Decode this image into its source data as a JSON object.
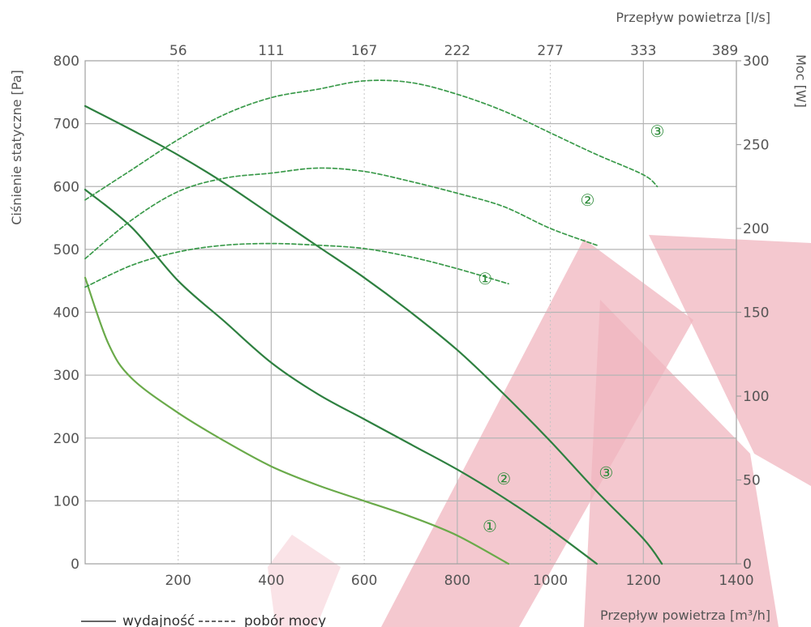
{
  "chart_data": {
    "type": "line",
    "x_axis_bottom": {
      "label": "Przepływ powietrza [m³/h]",
      "range": [
        0,
        1400
      ],
      "ticks": [
        200,
        400,
        600,
        800,
        1000,
        1200,
        1400
      ]
    },
    "x_axis_top": {
      "label": "Przepływ powietrza [l/s]",
      "ticks": [
        {
          "label": "56",
          "at_m3h": 200
        },
        {
          "label": "111",
          "at_m3h": 400
        },
        {
          "label": "167",
          "at_m3h": 600
        },
        {
          "label": "222",
          "at_m3h": 800
        },
        {
          "label": "277",
          "at_m3h": 1000
        },
        {
          "label": "333",
          "at_m3h": 1200
        },
        {
          "label": "389",
          "at_m3h": 1400
        }
      ]
    },
    "y_axis_left": {
      "label": "Ciśnienie statyczne [Pa]",
      "range": [
        0,
        800
      ],
      "ticks": [
        0,
        100,
        200,
        300,
        400,
        500,
        600,
        700,
        800
      ]
    },
    "y_axis_right": {
      "label": "Moc [W]",
      "range": [
        0,
        300
      ],
      "ticks": [
        0,
        50,
        100,
        150,
        200,
        250,
        300
      ]
    },
    "legend": {
      "placement": "bottom-left",
      "solid_label": "wydajność",
      "dashed_label": "pobór mocy"
    },
    "series": [
      {
        "kind": "pressure",
        "speed": "1",
        "color": "#6aaa4a",
        "points": [
          [
            0,
            455
          ],
          [
            50,
            350
          ],
          [
            100,
            295
          ],
          [
            200,
            240
          ],
          [
            300,
            195
          ],
          [
            400,
            155
          ],
          [
            500,
            125
          ],
          [
            600,
            100
          ],
          [
            700,
            75
          ],
          [
            800,
            45
          ],
          [
            910,
            0
          ]
        ]
      },
      {
        "kind": "pressure",
        "speed": "2",
        "color": "#2e8040",
        "points": [
          [
            0,
            595
          ],
          [
            100,
            535
          ],
          [
            200,
            450
          ],
          [
            300,
            385
          ],
          [
            400,
            320
          ],
          [
            500,
            270
          ],
          [
            600,
            230
          ],
          [
            700,
            190
          ],
          [
            800,
            150
          ],
          [
            900,
            105
          ],
          [
            1000,
            55
          ],
          [
            1100,
            0
          ]
        ]
      },
      {
        "kind": "pressure",
        "speed": "3",
        "color": "#2e8040",
        "points": [
          [
            0,
            728
          ],
          [
            100,
            690
          ],
          [
            200,
            650
          ],
          [
            300,
            605
          ],
          [
            400,
            555
          ],
          [
            500,
            505
          ],
          [
            600,
            455
          ],
          [
            700,
            400
          ],
          [
            800,
            340
          ],
          [
            900,
            270
          ],
          [
            1000,
            195
          ],
          [
            1100,
            115
          ],
          [
            1200,
            40
          ],
          [
            1240,
            0
          ]
        ]
      },
      {
        "kind": "power",
        "speed": "1",
        "color": "#3a9a4a",
        "points": [
          [
            0,
            165
          ],
          [
            100,
            178
          ],
          [
            200,
            186
          ],
          [
            300,
            190
          ],
          [
            400,
            191
          ],
          [
            500,
            190
          ],
          [
            600,
            188
          ],
          [
            700,
            183
          ],
          [
            800,
            176
          ],
          [
            910,
            167
          ]
        ]
      },
      {
        "kind": "power",
        "speed": "2",
        "color": "#3a9a4a",
        "points": [
          [
            0,
            182
          ],
          [
            100,
            205
          ],
          [
            200,
            222
          ],
          [
            300,
            230
          ],
          [
            400,
            233
          ],
          [
            500,
            236
          ],
          [
            600,
            234
          ],
          [
            700,
            228
          ],
          [
            800,
            221
          ],
          [
            900,
            213
          ],
          [
            1000,
            200
          ],
          [
            1100,
            190
          ]
        ]
      },
      {
        "kind": "power",
        "speed": "3",
        "color": "#3a9a4a",
        "points": [
          [
            0,
            217
          ],
          [
            100,
            235
          ],
          [
            200,
            253
          ],
          [
            300,
            268
          ],
          [
            400,
            278
          ],
          [
            500,
            283
          ],
          [
            600,
            288
          ],
          [
            700,
            287
          ],
          [
            800,
            280
          ],
          [
            900,
            270
          ],
          [
            1000,
            257
          ],
          [
            1100,
            244
          ],
          [
            1200,
            232
          ],
          [
            1230,
            225
          ]
        ]
      }
    ],
    "curve_labels": [
      {
        "text": "①",
        "at": [
          870,
          60
        ],
        "axis": "left"
      },
      {
        "text": "②",
        "at": [
          900,
          135
        ],
        "axis": "left"
      },
      {
        "text": "③",
        "at": [
          1120,
          145
        ],
        "axis": "left"
      },
      {
        "text": "①",
        "at": [
          860,
          170
        ],
        "axis": "right"
      },
      {
        "text": "②",
        "at": [
          1080,
          217
        ],
        "axis": "right"
      },
      {
        "text": "③",
        "at": [
          1230,
          258
        ],
        "axis": "right"
      }
    ]
  }
}
